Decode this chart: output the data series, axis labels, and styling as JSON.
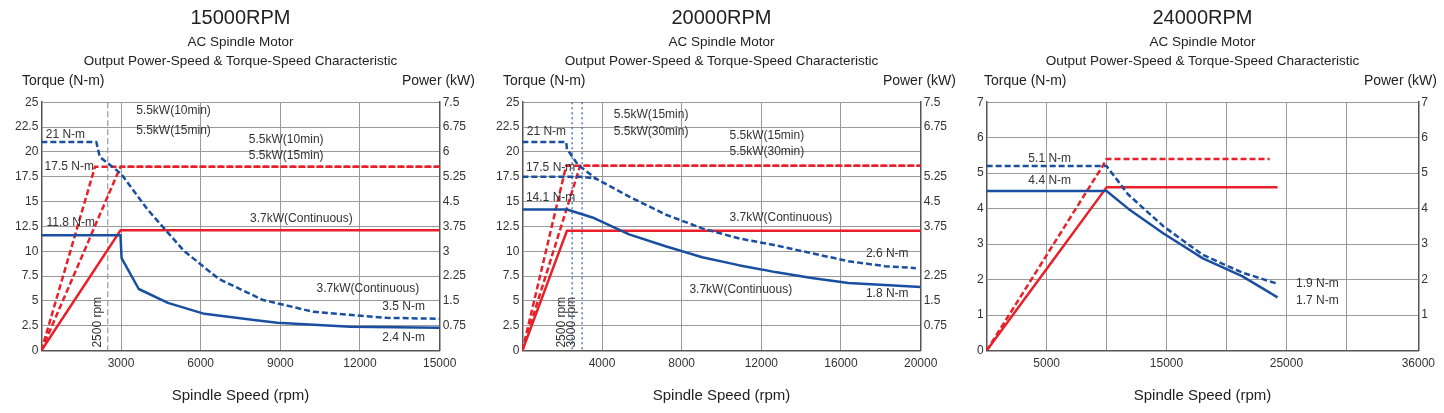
{
  "chart_data": [
    {
      "type": "line",
      "title": "15000RPM",
      "subtitle": "AC Spindle Motor\nOutput Power-Speed & Torque-Speed Characteristic",
      "xlabel": "Spindle Speed (rpm)",
      "ylabel": "Torque (N-m)",
      "y2label": "Power (kW)",
      "xlim": [
        0,
        15000
      ],
      "xticks": [
        3000,
        6000,
        9000,
        12000,
        15000
      ],
      "ylim": [
        0,
        25
      ],
      "yticks": [
        0,
        2.5,
        5,
        7.5,
        10,
        12.5,
        15,
        17.5,
        20,
        22.5,
        25
      ],
      "y2lim": [
        0,
        7.5
      ],
      "y2ticks": [
        0.75,
        1.5,
        2.25,
        3,
        3.75,
        4.5,
        5.25,
        6,
        6.75,
        7.5
      ],
      "grid": true,
      "marker": "none",
      "series": [
        {
          "color": "#1a4fa0",
          "line_style": "dashed",
          "axis": "y",
          "x": [
            0,
            2070,
            2200,
            3000,
            4000,
            5385,
            6690,
            8340,
            10260,
            13010,
            15000
          ],
          "values": [
            21,
            21,
            19.5,
            17.8,
            14.2,
            10,
            7.2,
            5.1,
            3.9,
            3.3,
            3.2
          ]
        },
        {
          "color": "#1a4fa0",
          "line_style": "solid",
          "axis": "y",
          "x": [
            0,
            2980,
            3022,
            3668,
            4766,
            6140,
            8887,
            11635,
            15000
          ],
          "values": [
            11.6,
            11.6,
            9.3,
            6.2,
            4.8,
            3.7,
            2.8,
            2.4,
            2.3
          ]
        },
        {
          "color": "#e8202a",
          "line_style": "dashed",
          "axis": "y2",
          "x": [
            0,
            2020,
            15000
          ],
          "values": [
            0,
            5.55,
            5.55
          ]
        },
        {
          "color": "#e8202a",
          "line_style": "dashed",
          "axis": "y2",
          "x": [
            0,
            2980,
            15000
          ],
          "values": [
            0,
            5.55,
            5.55
          ]
        },
        {
          "color": "#e8202a",
          "line_style": "solid",
          "axis": "y2",
          "x": [
            0,
            2980,
            15000
          ],
          "values": [
            0,
            3.63,
            3.63
          ]
        }
      ],
      "ref_lines": [
        {
          "axis": "x",
          "value": 2500,
          "label": "2500 rpm",
          "color": "#999999",
          "line_style": "dashed"
        }
      ],
      "annotations": [
        "5.5kW(10min)",
        "5.5kW(15min)",
        "5.5kW(10min)",
        "5.5kW(15min)",
        "21 N-m",
        "17.5 N-m",
        "11.8 N-m",
        "3.7kW(Continuous)",
        "3.7kW(Continuous)",
        "3.5 N-m",
        "2.4 N-m"
      ]
    },
    {
      "type": "line",
      "title": "20000RPM",
      "subtitle": "AC Spindle Motor\nOutput Power-Speed & Torque-Speed Characteristic",
      "xlabel": "Spindle Speed (rpm)",
      "ylabel": "Torque (N-m)",
      "y2label": "Power (kW)",
      "xlim": [
        0,
        20000
      ],
      "xticks": [
        4000,
        8000,
        12000,
        16000,
        20000
      ],
      "ylim": [
        0,
        25
      ],
      "yticks": [
        0,
        2.5,
        5,
        7.5,
        10,
        12.5,
        15,
        17.5,
        20,
        22.5,
        25
      ],
      "y2lim": [
        0,
        7.5
      ],
      "y2ticks": [
        0.75,
        1.5,
        2.25,
        3.75,
        4.5,
        5.25,
        6.75,
        7.5
      ],
      "grid": true,
      "marker": "none",
      "series": [
        {
          "color": "#1a4fa0",
          "line_style": "dashed",
          "axis": "y",
          "x": [
            0,
            2200,
            2240,
            2790,
            3700,
            5360,
            7190,
            9030,
            10860,
            12700,
            14530,
            16370,
            18200,
            19760
          ],
          "values": [
            21,
            21,
            20.3,
            18.7,
            17.3,
            15.5,
            13.7,
            12.3,
            11.3,
            10.6,
            9.8,
            9,
            8.5,
            8.3
          ]
        },
        {
          "color": "#1a4fa0",
          "line_style": "dashed",
          "axis": "y",
          "x": [
            0,
            2970,
            3700
          ],
          "values": [
            17.5,
            17.5,
            17.3
          ]
        },
        {
          "color": "#1a4fa0",
          "line_style": "solid",
          "axis": "y",
          "x": [
            0,
            2240,
            3520,
            5360,
            7190,
            9030,
            10860,
            12700,
            14530,
            16370,
            18200,
            20000
          ],
          "values": [
            14.2,
            14.2,
            13.4,
            11.7,
            10.5,
            9.4,
            8.6,
            7.9,
            7.3,
            6.8,
            6.6,
            6.4
          ]
        },
        {
          "color": "#e8202a",
          "line_style": "dashed",
          "axis": "y2",
          "x": [
            0,
            2200,
            20000
          ],
          "values": [
            0,
            5.58,
            5.58
          ]
        },
        {
          "color": "#e8202a",
          "line_style": "dashed",
          "axis": "y2",
          "x": [
            0,
            2900,
            20000
          ],
          "values": [
            0,
            5.58,
            5.58
          ]
        },
        {
          "color": "#e8202a",
          "line_style": "solid",
          "axis": "y2",
          "x": [
            0,
            2240,
            20000
          ],
          "values": [
            0,
            3.62,
            3.62
          ]
        }
      ],
      "ref_lines": [
        {
          "axis": "x",
          "value": 2500,
          "label": "2500 rpm",
          "color": "#2255cc",
          "line_style": "dotted"
        },
        {
          "axis": "x",
          "value": 3000,
          "label": "3000 rpm",
          "color": "#2255cc",
          "line_style": "dotted"
        }
      ],
      "annotations": [
        "5.5kW(15min)",
        "5.5kW(30min)",
        "5.5kW(15min)",
        "5.5kW(30min)",
        "21 N-m",
        "17.5 N-m",
        "14.1 N-m",
        "3.7kW(Continuous)",
        "3.7kW(Continuous)",
        "2.6 N-m",
        "1.8 N-m"
      ]
    },
    {
      "type": "line",
      "title": "24000RPM",
      "subtitle": "AC Spindle Motor\nOutput Power-Speed & Torque-Speed Characteristic",
      "xlabel": "Spindle Speed (rpm)",
      "ylabel": "Torque (N-m)",
      "y2label": "Power (kW)",
      "xlim": [
        0,
        36000
      ],
      "xticks": [
        5000,
        {
          "value": 10000,
          "label": null
        },
        15000,
        {
          "value": 20000,
          "label": null
        },
        25000,
        {
          "value": 30000,
          "label": null
        },
        36000
      ],
      "ylim": [
        0,
        7
      ],
      "yticks": [
        0,
        1,
        2,
        3,
        4,
        5,
        6,
        7
      ],
      "y2lim": [
        0,
        7
      ],
      "y2ticks": [
        1,
        2,
        3,
        4,
        5,
        6,
        7
      ],
      "grid": true,
      "marker": "none",
      "series": [
        {
          "color": "#1a4fa0",
          "line_style": "dashed",
          "axis": "y",
          "x": [
            0,
            10000,
            11800,
            14750,
            18030,
            21300,
            24100
          ],
          "values": [
            5.2,
            5.2,
            4.4,
            3.5,
            2.7,
            2.2,
            1.9
          ]
        },
        {
          "color": "#1a4fa0",
          "line_style": "solid",
          "axis": "y",
          "x": [
            0,
            10000,
            11800,
            14750,
            18030,
            21300,
            24260
          ],
          "values": [
            4.5,
            4.5,
            4,
            3.3,
            2.6,
            2.1,
            1.5
          ]
        },
        {
          "color": "#e8202a",
          "line_style": "dashed",
          "axis": "y2",
          "x": [
            0,
            9670,
            10000,
            23600
          ],
          "values": [
            0,
            5.2,
            5.4,
            5.4
          ]
        },
        {
          "color": "#e8202a",
          "line_style": "solid",
          "axis": "y2",
          "x": [
            0,
            10000,
            24260
          ],
          "values": [
            0,
            4.6,
            4.6
          ]
        }
      ],
      "annotations": [
        "5.1 N-m",
        "4.4 N-m",
        "1.9 N-m",
        "1.7 N-m"
      ]
    }
  ]
}
